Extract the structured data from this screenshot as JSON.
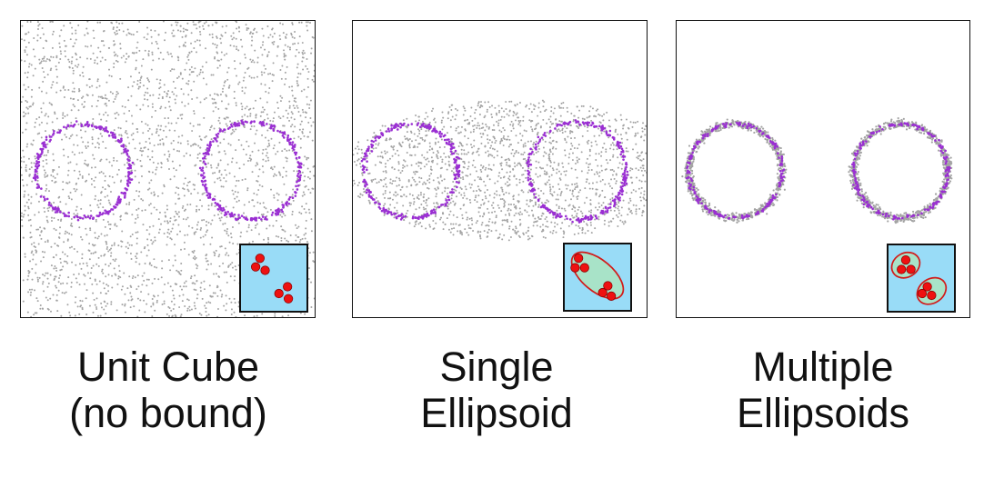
{
  "colors": {
    "prior_points": "#a3a3a3",
    "live_points": "#9a2fd2",
    "inset_background": "#99dcf7",
    "ellipsoid_fill": "#a8e3c8",
    "ellipsoid_stroke": "#d21a1a",
    "live_point_marker": "#ee1111",
    "frame": "#111111"
  },
  "panels": [
    {
      "id": "unit-cube",
      "caption_line1": "Unit Cube",
      "caption_line2": "(no bound)",
      "bound": "unit-cube",
      "inset_icon": "three-points-in-box-icon"
    },
    {
      "id": "single-ellipsoid",
      "caption_line1": "Single",
      "caption_line2": "Ellipsoid",
      "bound": "single-ellipsoid",
      "inset_icon": "single-ellipse-icon"
    },
    {
      "id": "multiple-ellipsoids",
      "caption_line1": "Multiple",
      "caption_line2": "Ellipsoids",
      "bound": "multiple-ellipsoids",
      "inset_icon": "two-ellipses-icon"
    }
  ]
}
